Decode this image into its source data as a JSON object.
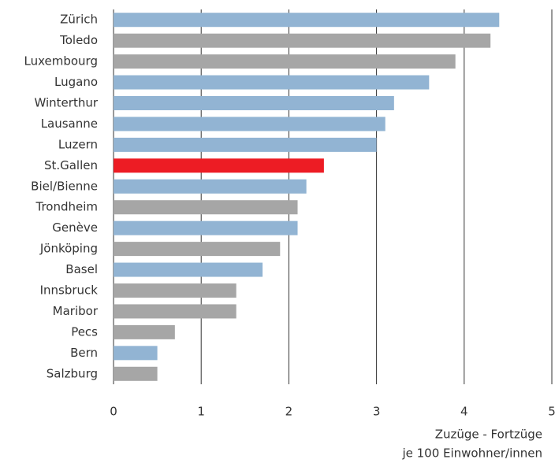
{
  "chart_data": {
    "type": "bar",
    "orientation": "horizontal",
    "categories": [
      "Zürich",
      "Toledo",
      "Luxembourg",
      "Lugano",
      "Winterthur",
      "Lausanne",
      "Luzern",
      "St.Gallen",
      "Biel/Bienne",
      "Trondheim",
      "Genève",
      "Jönköping",
      "Basel",
      "Innsbruck",
      "Maribor",
      "Pecs",
      "Bern",
      "Salzburg"
    ],
    "values": [
      4.4,
      4.3,
      3.9,
      3.6,
      3.2,
      3.1,
      3.0,
      2.4,
      2.2,
      2.1,
      2.1,
      1.9,
      1.7,
      1.4,
      1.4,
      0.7,
      0.5,
      0.5
    ],
    "colors": [
      "#92b4d3",
      "#a6a6a6",
      "#a6a6a6",
      "#92b4d3",
      "#92b4d3",
      "#92b4d3",
      "#92b4d3",
      "#ed1c24",
      "#92b4d3",
      "#a6a6a6",
      "#92b4d3",
      "#a6a6a6",
      "#92b4d3",
      "#a6a6a6",
      "#a6a6a6",
      "#a6a6a6",
      "#92b4d3",
      "#a6a6a6"
    ],
    "xlim": [
      0,
      5
    ],
    "xticks": [
      0,
      1,
      2,
      3,
      4,
      5
    ],
    "grid": true,
    "xlabel": [
      "Zuzüge - Fortzüge",
      "je 100 Einwohner/innen"
    ]
  }
}
